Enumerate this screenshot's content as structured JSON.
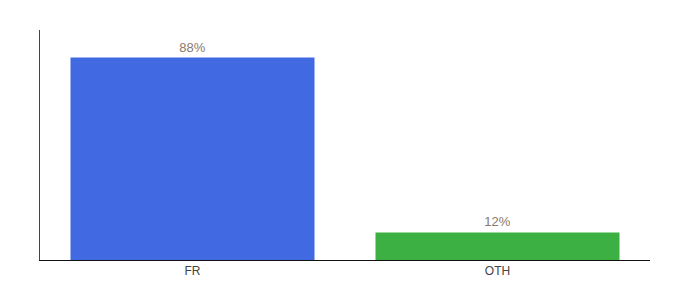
{
  "chart_data": {
    "type": "bar",
    "categories": [
      "FR",
      "OTH"
    ],
    "values": [
      88,
      12
    ],
    "value_labels": [
      "88%",
      "12%"
    ],
    "colors": [
      "#4169e1",
      "#3cb043"
    ],
    "ylim": [
      0,
      100
    ],
    "data_labels": true,
    "tick_labels": "x",
    "grid": false
  }
}
